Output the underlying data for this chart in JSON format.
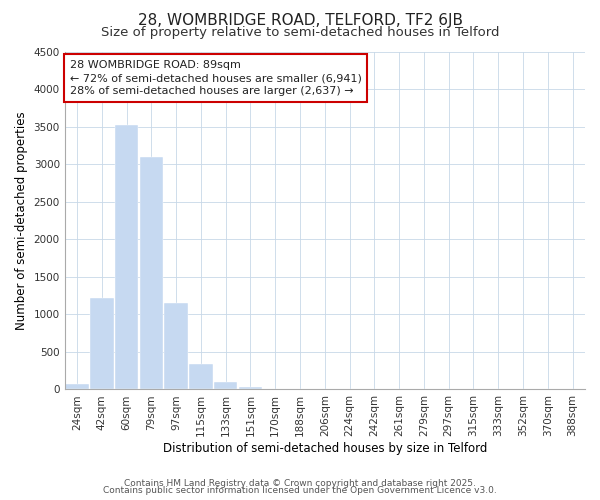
{
  "title": "28, WOMBRIDGE ROAD, TELFORD, TF2 6JB",
  "subtitle": "Size of property relative to semi-detached houses in Telford",
  "xlabel": "Distribution of semi-detached houses by size in Telford",
  "ylabel": "Number of semi-detached properties",
  "categories": [
    "24sqm",
    "42sqm",
    "60sqm",
    "79sqm",
    "97sqm",
    "115sqm",
    "133sqm",
    "151sqm",
    "170sqm",
    "188sqm",
    "206sqm",
    "224sqm",
    "242sqm",
    "261sqm",
    "279sqm",
    "297sqm",
    "315sqm",
    "333sqm",
    "352sqm",
    "370sqm",
    "388sqm"
  ],
  "values": [
    75,
    1220,
    3520,
    3100,
    1150,
    340,
    100,
    30,
    5,
    2,
    1,
    0,
    0,
    0,
    0,
    0,
    0,
    0,
    0,
    0,
    0
  ],
  "bar_color": "#c6d9f1",
  "bar_edge_color": "#aec8e8",
  "annotation_box_color": "#ffffff",
  "annotation_border_color": "#cc0000",
  "annotation_title": "28 WOMBRIDGE ROAD: 89sqm",
  "annotation_line1": "← 72% of semi-detached houses are smaller (6,941)",
  "annotation_line2": "28% of semi-detached houses are larger (2,637) →",
  "vline_index": 3,
  "ylim": [
    0,
    4500
  ],
  "yticks": [
    0,
    500,
    1000,
    1500,
    2000,
    2500,
    3000,
    3500,
    4000,
    4500
  ],
  "footnote1": "Contains HM Land Registry data © Crown copyright and database right 2025.",
  "footnote2": "Contains public sector information licensed under the Open Government Licence v3.0.",
  "bg_color": "#ffffff",
  "grid_color": "#c8d8e8",
  "title_fontsize": 11,
  "subtitle_fontsize": 9.5,
  "axis_label_fontsize": 8.5,
  "tick_fontsize": 7.5,
  "annotation_fontsize": 8,
  "footnote_fontsize": 6.5
}
